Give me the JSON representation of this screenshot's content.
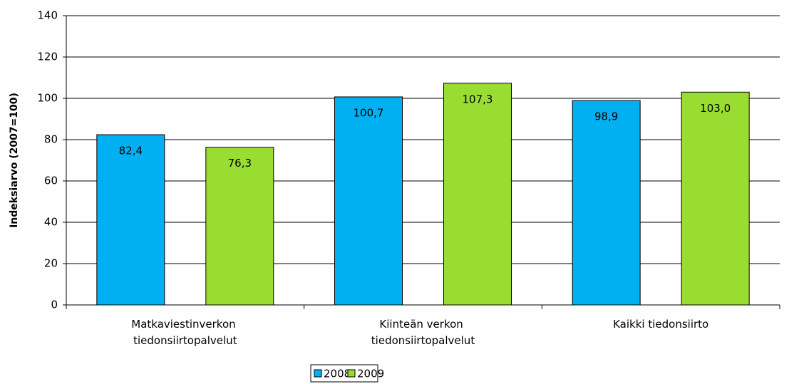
{
  "chart_data": {
    "type": "bar",
    "ylabel": "Indeksiarvo (2007=100)",
    "categories": [
      "Matkaviestinverkon tiedonsiirtopalvelut",
      "Kiinteän verkon tiedonsiirtopalvelut",
      "Kaikki tiedonsiirto"
    ],
    "series": [
      {
        "name": "2008",
        "color": "#00b0f0",
        "values": [
          82.4,
          100.7,
          98.9
        ],
        "value_labels": [
          "82,4",
          "100,7",
          "98,9"
        ]
      },
      {
        "name": "2009",
        "color": "#99dd33",
        "values": [
          76.3,
          107.3,
          103.0
        ],
        "value_labels": [
          "76,3",
          "107,3",
          "103,0"
        ]
      }
    ],
    "ylim": [
      0,
      140
    ],
    "yticks": [
      0,
      20,
      40,
      60,
      80,
      100,
      120,
      140
    ],
    "grid": true,
    "legend": "bottom"
  }
}
